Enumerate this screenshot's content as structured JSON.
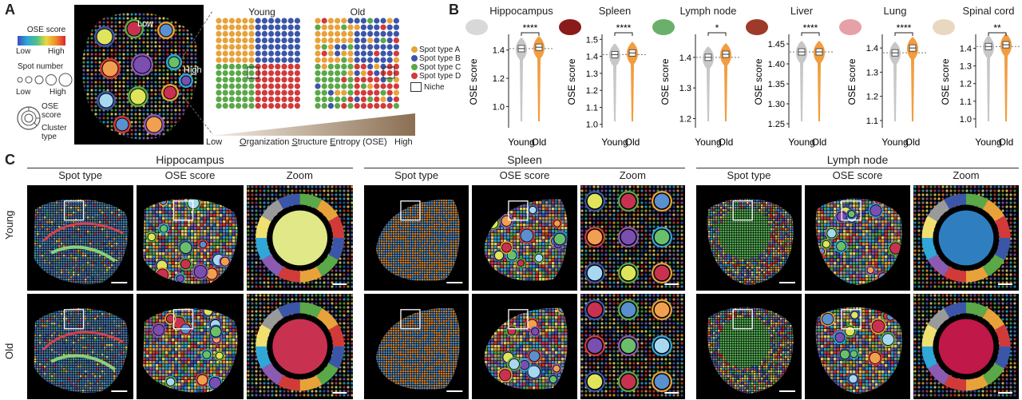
{
  "panelA": {
    "label": "A",
    "legend": {
      "ose_title": "OSE score",
      "ose_low": "Low",
      "ose_high": "High",
      "spot_title": "Spot number",
      "spot_low": "Low",
      "spot_high": "High",
      "ring_ose": "OSE score",
      "ring_cluster": "Cluster type"
    },
    "callout_low": "Low",
    "callout_high": "High",
    "young": "Young",
    "old": "Old",
    "spot_types": [
      "Spot type A",
      "Spot type B",
      "Spot type C",
      "Spot type D"
    ],
    "spot_colors": [
      "#e8a23a",
      "#3b56a8",
      "#5aa848",
      "#d23a3a"
    ],
    "niche": "Niche",
    "axis_low": "Low",
    "axis_high": "High",
    "axis_O": "O",
    "axis_rganization": "rganization ",
    "axis_S": "S",
    "axis_tructure": "tructure ",
    "axis_E": "E",
    "axis_ntropy": "ntropy (OSE)"
  },
  "panelB": {
    "label": "B",
    "ylabel": "OSE score",
    "xcats": [
      "Young",
      "Old"
    ],
    "colors": {
      "young": "#bdbdbd",
      "old": "#f08c1e"
    },
    "plots": [
      {
        "title": "Hippocampus",
        "sig": "****",
        "ticks": [
          "1.4",
          "1.2",
          "1.0"
        ],
        "tickvals": [
          1.4,
          1.2,
          1.0
        ],
        "ylim": [
          0.85,
          1.5
        ],
        "median_young": 1.41,
        "median_old": 1.42
      },
      {
        "title": "Spleen",
        "sig": "****",
        "ticks": [
          "1.5",
          "1.4",
          "1.3",
          "1.2",
          "1.1",
          "1.0"
        ],
        "tickvals": [
          1.5,
          1.4,
          1.3,
          1.2,
          1.1,
          1.0
        ],
        "ylim": [
          0.98,
          1.52
        ],
        "median_young": 1.41,
        "median_old": 1.42
      },
      {
        "title": "Lymph node",
        "sig": "*",
        "ticks": [
          "1.4",
          "1.3",
          "1.2"
        ],
        "tickvals": [
          1.4,
          1.3,
          1.2
        ],
        "ylim": [
          1.17,
          1.47
        ],
        "median_young": 1.4,
        "median_old": 1.41
      },
      {
        "title": "Liver",
        "sig": "****",
        "ticks": [
          "1.45",
          "1.40",
          "1.35",
          "1.30",
          "1.25"
        ],
        "tickvals": [
          1.45,
          1.4,
          1.35,
          1.3,
          1.25
        ],
        "ylim": [
          1.24,
          1.47
        ],
        "median_young": 1.43,
        "median_old": 1.43
      },
      {
        "title": "Lung",
        "sig": "****",
        "ticks": [
          "1.4",
          "1.3",
          "1.2",
          "1.1"
        ],
        "tickvals": [
          1.4,
          1.3,
          1.2,
          1.1
        ],
        "ylim": [
          1.07,
          1.45
        ],
        "median_young": 1.38,
        "median_old": 1.4
      },
      {
        "title": "Spinal cord",
        "sig": "**",
        "ticks": [
          "1.4",
          "1.3",
          "1.2",
          "1.1",
          "1.0"
        ],
        "tickvals": [
          1.4,
          1.3,
          1.2,
          1.1,
          1.0
        ],
        "ylim": [
          0.95,
          1.47
        ],
        "median_young": 1.41,
        "median_old": 1.42
      }
    ]
  },
  "panelC": {
    "label": "C",
    "row_young": "Young",
    "row_old": "Old",
    "tissues": [
      {
        "title": "Hippocampus",
        "cols": [
          "Spot type",
          "OSE score",
          "Zoom"
        ]
      },
      {
        "title": "Spleen",
        "cols": [
          "Spot type",
          "OSE score",
          "Zoom"
        ]
      },
      {
        "title": "Lymph node",
        "cols": [
          "Spot type",
          "OSE score",
          "Zoom"
        ]
      }
    ]
  }
}
